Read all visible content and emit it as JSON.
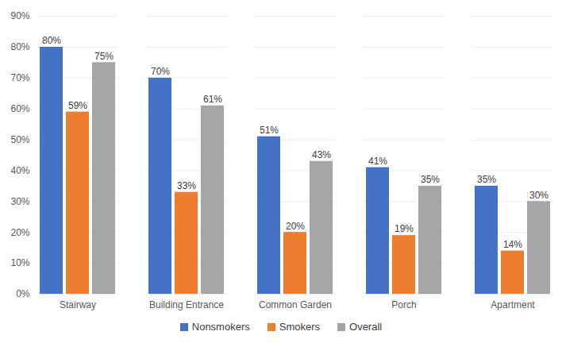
{
  "chart_data": {
    "type": "bar",
    "categories": [
      "Stairway",
      "Building Entrance",
      "Common Garden",
      "Porch",
      "Apartment"
    ],
    "series": [
      {
        "name": "Nonsmokers",
        "color": "#4472c4",
        "values": [
          80,
          70,
          51,
          41,
          35
        ],
        "value_labels": [
          "80%",
          "70%",
          "51%",
          "41%",
          "35%"
        ]
      },
      {
        "name": "Smokers",
        "color": "#ed7d31",
        "values": [
          59,
          33,
          20,
          19,
          14
        ],
        "value_labels": [
          "59%",
          "33%",
          "20%",
          "19%",
          "14%"
        ]
      },
      {
        "name": "Overall",
        "color": "#a5a5a5",
        "values": [
          75,
          61,
          43,
          35,
          30
        ],
        "value_labels": [
          "75%",
          "61%",
          "43%",
          "35%",
          "30%"
        ]
      }
    ],
    "ylim": [
      0,
      90
    ],
    "yticks": [
      {
        "value": 0,
        "label": "0%"
      },
      {
        "value": 10,
        "label": "10%"
      },
      {
        "value": 20,
        "label": "20%"
      },
      {
        "value": 30,
        "label": "30%"
      },
      {
        "value": 40,
        "label": "40%"
      },
      {
        "value": 50,
        "label": "50%"
      },
      {
        "value": 60,
        "label": "60%"
      },
      {
        "value": 70,
        "label": "70%"
      },
      {
        "value": 80,
        "label": "80%"
      },
      {
        "value": 90,
        "label": "90%"
      }
    ],
    "grid": true,
    "data_labels": true,
    "legend": "bottom"
  }
}
